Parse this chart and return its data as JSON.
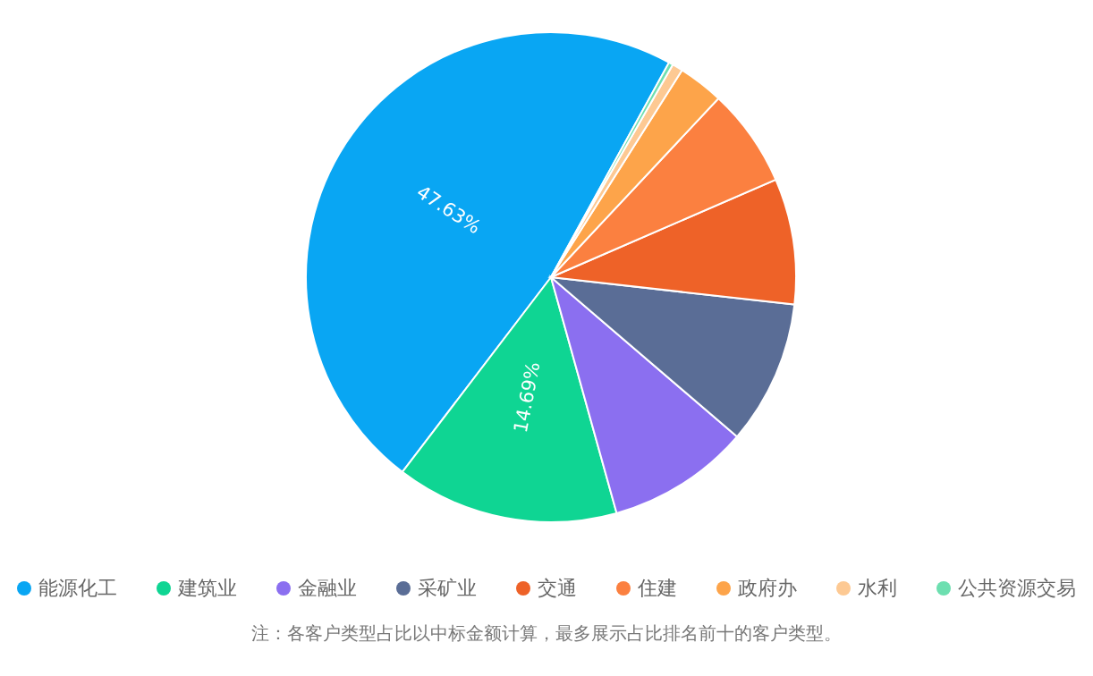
{
  "chart_data": {
    "type": "pie",
    "categories": [
      "能源化工",
      "建筑业",
      "金融业",
      "采矿业",
      "交通",
      "住建",
      "政府办",
      "水利",
      "公共资源交易"
    ],
    "values": [
      47.63,
      14.69,
      9.4,
      9.5,
      8.3,
      6.5,
      3.0,
      0.7,
      0.28
    ],
    "colors": [
      "#09a6f3",
      "#0fd593",
      "#8b6ff0",
      "#5a6d96",
      "#ee6228",
      "#fb8040",
      "#fda44a",
      "#fdc993",
      "#6ddfb0"
    ],
    "value_labels": [
      "47.63%",
      "14.69%",
      null,
      null,
      null,
      null,
      null,
      null,
      null
    ],
    "legend": "bottom",
    "annotations": [
      "注：各客户类型占比以中标金额计算，最多展示占比排名前十的客户类型。"
    ]
  }
}
